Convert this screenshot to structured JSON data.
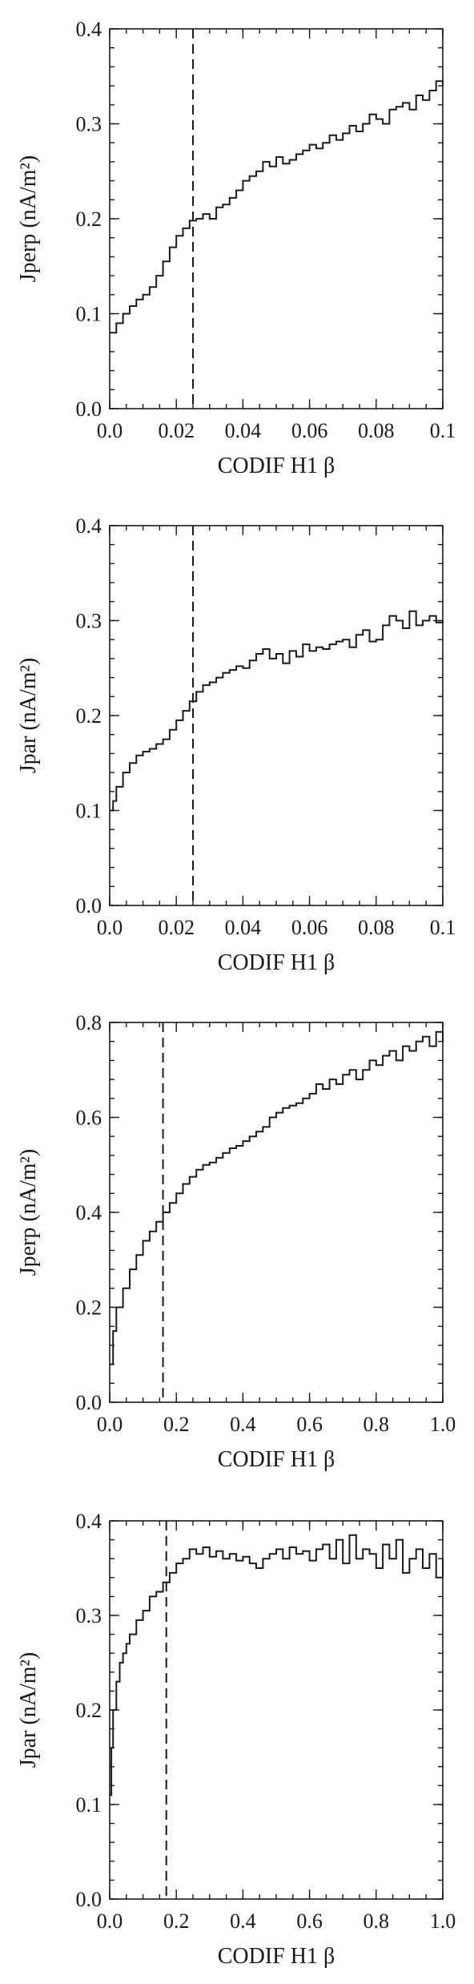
{
  "chart_data": [
    {
      "type": "line",
      "step": true,
      "xlabel": "CODIF H1 β",
      "ylabel": "Jperp (nA/m²)",
      "xlim": [
        0,
        0.1
      ],
      "ylim": [
        0,
        0.4
      ],
      "xticks": [
        "0.0",
        "0.02",
        "0.04",
        "0.06",
        "0.08",
        "0.1"
      ],
      "yticks": [
        "0.0",
        "0.1",
        "0.2",
        "0.3",
        "0.4"
      ],
      "x_tick_values": [
        0,
        0.02,
        0.04,
        0.06,
        0.08,
        0.1
      ],
      "y_tick_values": [
        0,
        0.1,
        0.2,
        0.3,
        0.4
      ],
      "x_minor_step": 0.005,
      "y_minor_step": 0.02,
      "vline": 0.025,
      "series": [
        {
          "x": [
            0.0,
            0.002,
            0.004,
            0.006,
            0.008,
            0.01,
            0.012,
            0.014,
            0.016,
            0.018,
            0.02,
            0.022,
            0.024,
            0.026,
            0.028,
            0.03,
            0.032,
            0.034,
            0.036,
            0.038,
            0.04,
            0.042,
            0.044,
            0.046,
            0.048,
            0.05,
            0.052,
            0.054,
            0.056,
            0.058,
            0.06,
            0.062,
            0.064,
            0.066,
            0.068,
            0.07,
            0.072,
            0.074,
            0.076,
            0.078,
            0.08,
            0.082,
            0.084,
            0.086,
            0.088,
            0.09,
            0.092,
            0.094,
            0.096,
            0.098,
            0.1
          ],
          "y": [
            0.08,
            0.09,
            0.1,
            0.108,
            0.115,
            0.12,
            0.128,
            0.14,
            0.155,
            0.17,
            0.182,
            0.19,
            0.198,
            0.2,
            0.205,
            0.2,
            0.212,
            0.215,
            0.222,
            0.23,
            0.24,
            0.245,
            0.25,
            0.26,
            0.255,
            0.265,
            0.258,
            0.262,
            0.268,
            0.272,
            0.278,
            0.274,
            0.28,
            0.288,
            0.283,
            0.29,
            0.298,
            0.292,
            0.3,
            0.31,
            0.305,
            0.3,
            0.315,
            0.318,
            0.322,
            0.315,
            0.33,
            0.325,
            0.335,
            0.345,
            0.34
          ]
        }
      ]
    },
    {
      "type": "line",
      "step": true,
      "xlabel": "CODIF H1 β",
      "ylabel": "Jpar (nA/m²)",
      "xlim": [
        0,
        0.1
      ],
      "ylim": [
        0,
        0.4
      ],
      "xticks": [
        "0.0",
        "0.02",
        "0.04",
        "0.06",
        "0.08",
        "0.1"
      ],
      "yticks": [
        "0.0",
        "0.1",
        "0.2",
        "0.3",
        "0.4"
      ],
      "x_tick_values": [
        0,
        0.02,
        0.04,
        0.06,
        0.08,
        0.1
      ],
      "y_tick_values": [
        0,
        0.1,
        0.2,
        0.3,
        0.4
      ],
      "x_minor_step": 0.005,
      "y_minor_step": 0.02,
      "vline": 0.025,
      "series": [
        {
          "x": [
            0.0,
            0.001,
            0.002,
            0.004,
            0.006,
            0.008,
            0.01,
            0.012,
            0.014,
            0.016,
            0.018,
            0.02,
            0.022,
            0.024,
            0.026,
            0.028,
            0.03,
            0.032,
            0.034,
            0.036,
            0.038,
            0.04,
            0.042,
            0.044,
            0.046,
            0.048,
            0.05,
            0.052,
            0.054,
            0.056,
            0.058,
            0.06,
            0.062,
            0.064,
            0.066,
            0.068,
            0.07,
            0.072,
            0.074,
            0.076,
            0.078,
            0.08,
            0.082,
            0.084,
            0.086,
            0.088,
            0.09,
            0.092,
            0.094,
            0.096,
            0.098,
            0.1
          ],
          "y": [
            0.1,
            0.11,
            0.125,
            0.14,
            0.15,
            0.158,
            0.162,
            0.165,
            0.17,
            0.175,
            0.185,
            0.195,
            0.205,
            0.215,
            0.225,
            0.232,
            0.235,
            0.24,
            0.245,
            0.248,
            0.252,
            0.25,
            0.258,
            0.265,
            0.27,
            0.26,
            0.265,
            0.255,
            0.268,
            0.262,
            0.275,
            0.268,
            0.272,
            0.27,
            0.275,
            0.278,
            0.28,
            0.272,
            0.285,
            0.29,
            0.278,
            0.28,
            0.295,
            0.305,
            0.3,
            0.292,
            0.31,
            0.295,
            0.3,
            0.305,
            0.298,
            0.3
          ]
        }
      ]
    },
    {
      "type": "line",
      "step": true,
      "xlabel": "CODIF H1 β",
      "ylabel": "Jperp (nA/m²)",
      "xlim": [
        0,
        1.0
      ],
      "ylim": [
        0,
        0.8
      ],
      "xticks": [
        "0.0",
        "0.2",
        "0.4",
        "0.6",
        "0.8",
        "1.0"
      ],
      "yticks": [
        "0.0",
        "0.2",
        "0.4",
        "0.6",
        "0.8"
      ],
      "x_tick_values": [
        0,
        0.2,
        0.4,
        0.6,
        0.8,
        1.0
      ],
      "y_tick_values": [
        0,
        0.2,
        0.4,
        0.6,
        0.8
      ],
      "x_minor_step": 0.05,
      "y_minor_step": 0.04,
      "vline": 0.16,
      "series": [
        {
          "x": [
            0.0,
            0.01,
            0.02,
            0.04,
            0.06,
            0.08,
            0.1,
            0.12,
            0.14,
            0.16,
            0.18,
            0.2,
            0.22,
            0.24,
            0.26,
            0.28,
            0.3,
            0.32,
            0.34,
            0.36,
            0.38,
            0.4,
            0.42,
            0.44,
            0.46,
            0.48,
            0.5,
            0.52,
            0.54,
            0.56,
            0.58,
            0.6,
            0.62,
            0.64,
            0.66,
            0.68,
            0.7,
            0.72,
            0.74,
            0.76,
            0.78,
            0.8,
            0.82,
            0.84,
            0.86,
            0.88,
            0.9,
            0.92,
            0.94,
            0.96,
            0.98,
            1.0
          ],
          "y": [
            0.08,
            0.15,
            0.2,
            0.24,
            0.28,
            0.31,
            0.34,
            0.36,
            0.38,
            0.4,
            0.42,
            0.44,
            0.46,
            0.475,
            0.49,
            0.5,
            0.505,
            0.515,
            0.525,
            0.535,
            0.54,
            0.55,
            0.56,
            0.57,
            0.58,
            0.6,
            0.61,
            0.62,
            0.625,
            0.63,
            0.64,
            0.65,
            0.67,
            0.66,
            0.68,
            0.67,
            0.69,
            0.7,
            0.68,
            0.7,
            0.72,
            0.71,
            0.73,
            0.74,
            0.72,
            0.75,
            0.74,
            0.76,
            0.77,
            0.75,
            0.78,
            0.76
          ]
        }
      ]
    },
    {
      "type": "line",
      "step": true,
      "xlabel": "CODIF H1 β",
      "ylabel": "Jpar (nA/m²)",
      "xlim": [
        0,
        1.0
      ],
      "ylim": [
        0,
        0.4
      ],
      "xticks": [
        "0.0",
        "0.2",
        "0.4",
        "0.6",
        "0.8",
        "1.0"
      ],
      "yticks": [
        "0.0",
        "0.1",
        "0.2",
        "0.3",
        "0.4"
      ],
      "x_tick_values": [
        0,
        0.2,
        0.4,
        0.6,
        0.8,
        1.0
      ],
      "y_tick_values": [
        0,
        0.1,
        0.2,
        0.3,
        0.4
      ],
      "x_minor_step": 0.05,
      "y_minor_step": 0.02,
      "vline": 0.17,
      "series": [
        {
          "x": [
            0.0,
            0.005,
            0.01,
            0.02,
            0.03,
            0.04,
            0.05,
            0.06,
            0.08,
            0.1,
            0.12,
            0.14,
            0.16,
            0.18,
            0.2,
            0.22,
            0.24,
            0.26,
            0.28,
            0.3,
            0.32,
            0.34,
            0.36,
            0.38,
            0.4,
            0.42,
            0.44,
            0.46,
            0.48,
            0.5,
            0.52,
            0.54,
            0.56,
            0.58,
            0.6,
            0.62,
            0.64,
            0.66,
            0.68,
            0.7,
            0.72,
            0.74,
            0.76,
            0.78,
            0.8,
            0.82,
            0.84,
            0.86,
            0.88,
            0.9,
            0.92,
            0.94,
            0.96,
            0.98,
            1.0
          ],
          "y": [
            0.11,
            0.16,
            0.2,
            0.23,
            0.25,
            0.26,
            0.27,
            0.28,
            0.295,
            0.305,
            0.32,
            0.325,
            0.335,
            0.345,
            0.355,
            0.36,
            0.37,
            0.365,
            0.372,
            0.362,
            0.368,
            0.36,
            0.365,
            0.358,
            0.362,
            0.355,
            0.35,
            0.36,
            0.365,
            0.37,
            0.36,
            0.372,
            0.365,
            0.368,
            0.358,
            0.37,
            0.375,
            0.36,
            0.38,
            0.355,
            0.385,
            0.36,
            0.37,
            0.365,
            0.35,
            0.375,
            0.36,
            0.38,
            0.345,
            0.36,
            0.37,
            0.35,
            0.365,
            0.34,
            0.36
          ]
        }
      ]
    }
  ]
}
